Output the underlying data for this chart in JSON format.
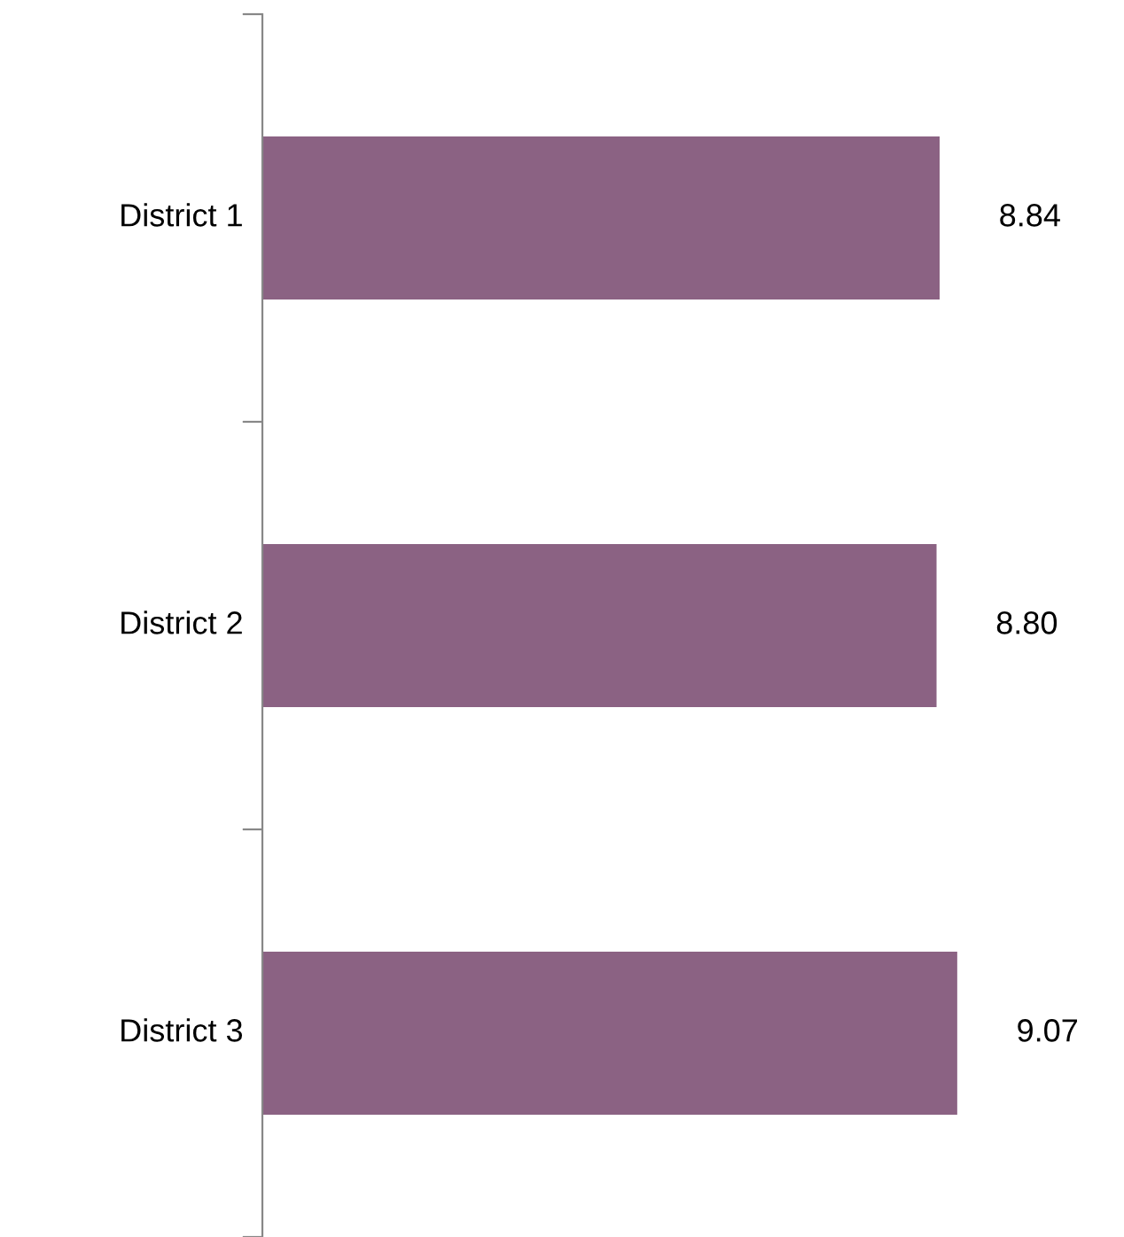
{
  "chart_data": {
    "type": "bar",
    "orientation": "horizontal",
    "categories": [
      "District 1",
      "District 2",
      "District 3"
    ],
    "values": [
      8.84,
      8.8,
      9.07
    ],
    "value_labels": [
      "8.84",
      "8.80",
      "9.07"
    ],
    "color": "#8b6283",
    "tick_labels": "y",
    "grid": false,
    "legend": false
  }
}
